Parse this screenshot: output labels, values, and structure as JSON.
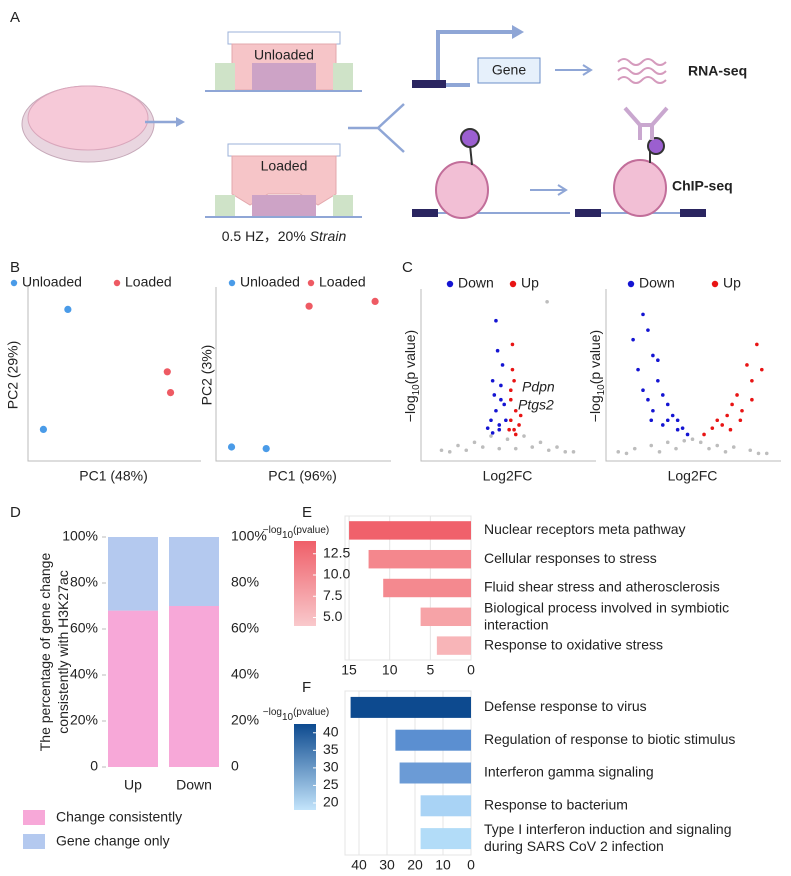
{
  "panel_labels": [
    "A",
    "B",
    "C",
    "D",
    "E",
    "F"
  ],
  "diagram": {
    "unloaded": "Unloaded",
    "loaded": "Loaded",
    "condition": "0.5 HZ，20% ",
    "strain": "Strain",
    "gene": "Gene",
    "rna_seq": "RNA-seq",
    "chip_seq": "ChIP-seq"
  },
  "chart_data": [
    {
      "type": "scatter",
      "xlabel": "PC1 (48%)",
      "ylabel": "PC2 (29%)",
      "xlim": [
        0,
        100
      ],
      "ylim": [
        0,
        100
      ],
      "series": [
        {
          "name": "Unloaded",
          "color": "#4a9be8",
          "x": [
            22,
            7
          ],
          "values": [
            91,
            16
          ]
        },
        {
          "name": "Loaded",
          "color": "#ee5a63",
          "x": [
            83,
            85
          ],
          "values": [
            52,
            39
          ]
        }
      ]
    },
    {
      "type": "scatter",
      "xlabel": "PC1 (96%)",
      "ylabel": "PC2 (3%)",
      "xlim": [
        0,
        100
      ],
      "ylim": [
        0,
        100
      ],
      "series": [
        {
          "name": "Unloaded",
          "color": "#4a9be8",
          "x": [
            7,
            28
          ],
          "values": [
            5,
            4
          ]
        },
        {
          "name": "Loaded",
          "color": "#ee5a63",
          "x": [
            54,
            94
          ],
          "values": [
            93,
            96
          ]
        }
      ]
    },
    {
      "type": "scatter",
      "xlabel": "Log2FC",
      "ylabel": [
        "−log",
        "10",
        "(p value)"
      ],
      "xlim": [
        -50,
        50
      ],
      "ylim": [
        0,
        100
      ],
      "annotations": [
        "Pdpn",
        "Ptgs2"
      ],
      "series": [
        {
          "color": "#bdbdbd",
          "x": [
            -40,
            -30,
            -20,
            -10,
            0,
            10,
            20,
            30,
            40,
            -25,
            25,
            -15,
            15,
            -5,
            5,
            35,
            -35,
            24
          ],
          "values": [
            3,
            6,
            8,
            12,
            10,
            12,
            8,
            5,
            2,
            3,
            3,
            5,
            5,
            4,
            4,
            2,
            2,
            97
          ]
        },
        {
          "name": "Down",
          "color": "#1414d2",
          "x": [
            -7,
            -6,
            -9,
            -4,
            -7,
            -10,
            -2,
            -5,
            -8,
            -3,
            -5,
            -9,
            -1,
            -4,
            -12
          ],
          "values": [
            85,
            66,
            47,
            35,
            28,
            22,
            32,
            19,
            38,
            57,
            16,
            14,
            22,
            44,
            17
          ]
        },
        {
          "name": "Up",
          "color": "#e81414",
          "x": [
            3,
            4,
            2,
            5,
            2,
            4,
            7,
            2,
            5,
            8,
            1,
            3
          ],
          "values": [
            70,
            47,
            35,
            28,
            22,
            16,
            19,
            41,
            13,
            25,
            16,
            54
          ]
        }
      ]
    },
    {
      "type": "scatter",
      "xlabel": "Log2FC",
      "ylabel": [
        "−log",
        "10",
        "(p value)"
      ],
      "xlim": [
        -50,
        50
      ],
      "ylim": [
        0,
        100
      ],
      "series": [
        {
          "color": "#bdbdbd",
          "x": [
            -45,
            -35,
            -25,
            -15,
            -5,
            0,
            5,
            15,
            25,
            35,
            45,
            -40,
            40,
            -10,
            10,
            20,
            -20
          ],
          "values": [
            2,
            4,
            6,
            8,
            9,
            10,
            8,
            6,
            5,
            3,
            1,
            1,
            1,
            4,
            4,
            2,
            2
          ]
        },
        {
          "name": "Down",
          "color": "#1414d2",
          "x": [
            -30,
            -27,
            -24,
            -33,
            -21,
            -18,
            -27,
            -15,
            -12,
            -9,
            -24,
            -6,
            -3,
            -18,
            -30,
            -36,
            -15,
            -9,
            -21,
            -25
          ],
          "values": [
            89,
            79,
            63,
            54,
            47,
            38,
            35,
            32,
            25,
            22,
            28,
            17,
            13,
            19,
            41,
            73,
            22,
            16,
            60,
            22
          ]
        },
        {
          "name": "Up",
          "color": "#e81414",
          "x": [
            39,
            33,
            36,
            27,
            24,
            21,
            15,
            30,
            12,
            7,
            18,
            42,
            29,
            23,
            36
          ],
          "values": [
            70,
            57,
            47,
            38,
            32,
            25,
            22,
            28,
            17,
            13,
            19,
            54,
            22,
            16,
            35
          ]
        }
      ]
    },
    {
      "type": "stacked_bar",
      "ylabel": [
        "The percentage of gene change",
        "consistently with H3K27ac"
      ],
      "categories": [
        "Up",
        "Down"
      ],
      "ylim": [
        0,
        100
      ],
      "yticks": [
        0,
        {
          "value": 20,
          "label": "20%"
        },
        {
          "value": 40,
          "label": "40%"
        },
        {
          "value": 60,
          "label": "60%"
        },
        {
          "value": 80,
          "label": "80%"
        },
        {
          "value": 100,
          "label": "100%"
        }
      ],
      "secondary_axis": true,
      "series": [
        {
          "name": "Change consistently",
          "color": "#f7a8d8",
          "values": [
            68,
            70
          ]
        },
        {
          "name": "Gene change only",
          "color": "#b4c9ef",
          "values": [
            32,
            30
          ]
        }
      ]
    },
    {
      "type": "hbar",
      "legend_title": [
        "−log",
        "10",
        "(pvalue)"
      ],
      "categories": [
        "Nuclear receptors meta pathway",
        "Cellular responses to stress",
        "Fluid shear stress and atherosclerosis",
        [
          "Biological process involved in symbiotic",
          "interaction"
        ],
        "Response to oxidative stress"
      ],
      "values": [
        15,
        12.6,
        10.8,
        6.2,
        4.2
      ],
      "colors": [
        "#f0616b",
        "#f4878d",
        "#f4898f",
        "#f6a3a7",
        "#f8b5b8"
      ],
      "xlim": [
        15.5,
        0
      ],
      "xticks": [
        15,
        10,
        5,
        0
      ],
      "grid": true,
      "colorbar": {
        "lim": [
          4,
          14
        ],
        "colors": [
          "#f9c9cc",
          "#ef5f69"
        ],
        "ticks": [
          12.5,
          {
            "value": 10,
            "label": "10.0"
          },
          7.5,
          {
            "value": 5,
            "label": "5.0"
          }
        ]
      }
    },
    {
      "type": "hbar",
      "legend_title": [
        "−log",
        "10",
        "(pvalue)"
      ],
      "categories": [
        "Defense response to virus",
        "Regulation of response to biotic stimulus",
        "Interferon gamma signaling",
        "Response to bacterium",
        [
          "Type I interferon induction and signaling",
          "during SARS CoV 2 infection"
        ]
      ],
      "values": [
        43,
        27,
        25.5,
        18,
        18
      ],
      "colors": [
        "#0d4a8f",
        "#5b8fd1",
        "#6b9bd6",
        "#a9d3f5",
        "#b2dcf8"
      ],
      "xlim": [
        45,
        0
      ],
      "xticks": [
        40,
        30,
        20,
        10,
        0
      ],
      "grid": true,
      "colorbar": {
        "lim": [
          18,
          42.5
        ],
        "colors": [
          "#c3e4fb",
          "#0d4a8f"
        ],
        "ticks": [
          40,
          35,
          30,
          25,
          20
        ]
      }
    }
  ]
}
